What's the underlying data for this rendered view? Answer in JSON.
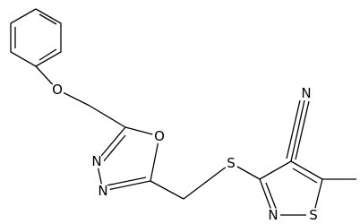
{
  "atoms": {
    "ether_o": "O",
    "ring_o": "O",
    "ring_n1": "N",
    "ring_n2": "N",
    "thio_s": "S",
    "isothiazole_n": "N",
    "isothiazole_s": "S",
    "nitrile_n": "N"
  }
}
